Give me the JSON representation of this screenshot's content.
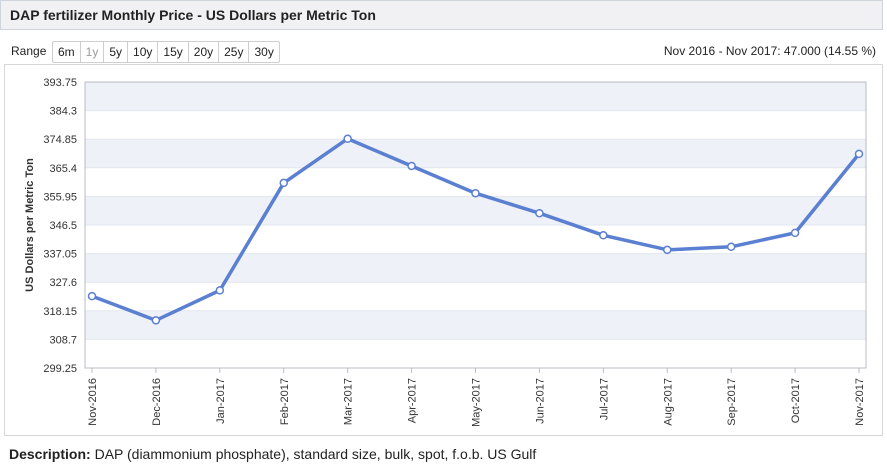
{
  "header": {
    "title": "DAP fertilizer Monthly Price - US Dollars per Metric Ton"
  },
  "range": {
    "label": "Range",
    "buttons": [
      {
        "label": "6m",
        "enabled": true
      },
      {
        "label": "1y",
        "enabled": false
      },
      {
        "label": "5y",
        "enabled": true
      },
      {
        "label": "10y",
        "enabled": true
      },
      {
        "label": "15y",
        "enabled": true
      },
      {
        "label": "20y",
        "enabled": true
      },
      {
        "label": "25y",
        "enabled": true
      },
      {
        "label": "30y",
        "enabled": true
      }
    ],
    "summary": "Nov 2016 - Nov 2017: 47.000 (14.55 %)"
  },
  "description": {
    "label": "Description:",
    "text": "DAP (diammonium phosphate), standard size, bulk, spot, f.o.b. US Gulf"
  },
  "colors": {
    "line": "#5b7fd1",
    "band": "#eef1f8",
    "marker_fill": "#ffffff"
  },
  "chart_data": {
    "type": "line",
    "ylabel": "US Dollars per Metric Ton",
    "xlabel": "",
    "ylim": [
      299.25,
      393.75
    ],
    "yticks": [
      "393.75",
      "384.3",
      "374.85",
      "365.4",
      "355.95",
      "346.5",
      "337.05",
      "327.6",
      "318.15",
      "308.7",
      "299.25"
    ],
    "categories": [
      "Nov-2016",
      "Dec-2016",
      "Jan-2017",
      "Feb-2017",
      "Mar-2017",
      "Apr-2017",
      "May-2017",
      "Jun-2017",
      "Jul-2017",
      "Aug-2017",
      "Sep-2017",
      "Oct-2017",
      "Nov-2017"
    ],
    "series": [
      {
        "values": [
          323.0,
          315.0,
          324.9,
          360.4,
          375.0,
          366.0,
          357.0,
          350.4,
          343.1,
          338.3,
          339.3,
          343.9,
          370.0
        ]
      }
    ],
    "grid": "horizontal alternating bands"
  }
}
